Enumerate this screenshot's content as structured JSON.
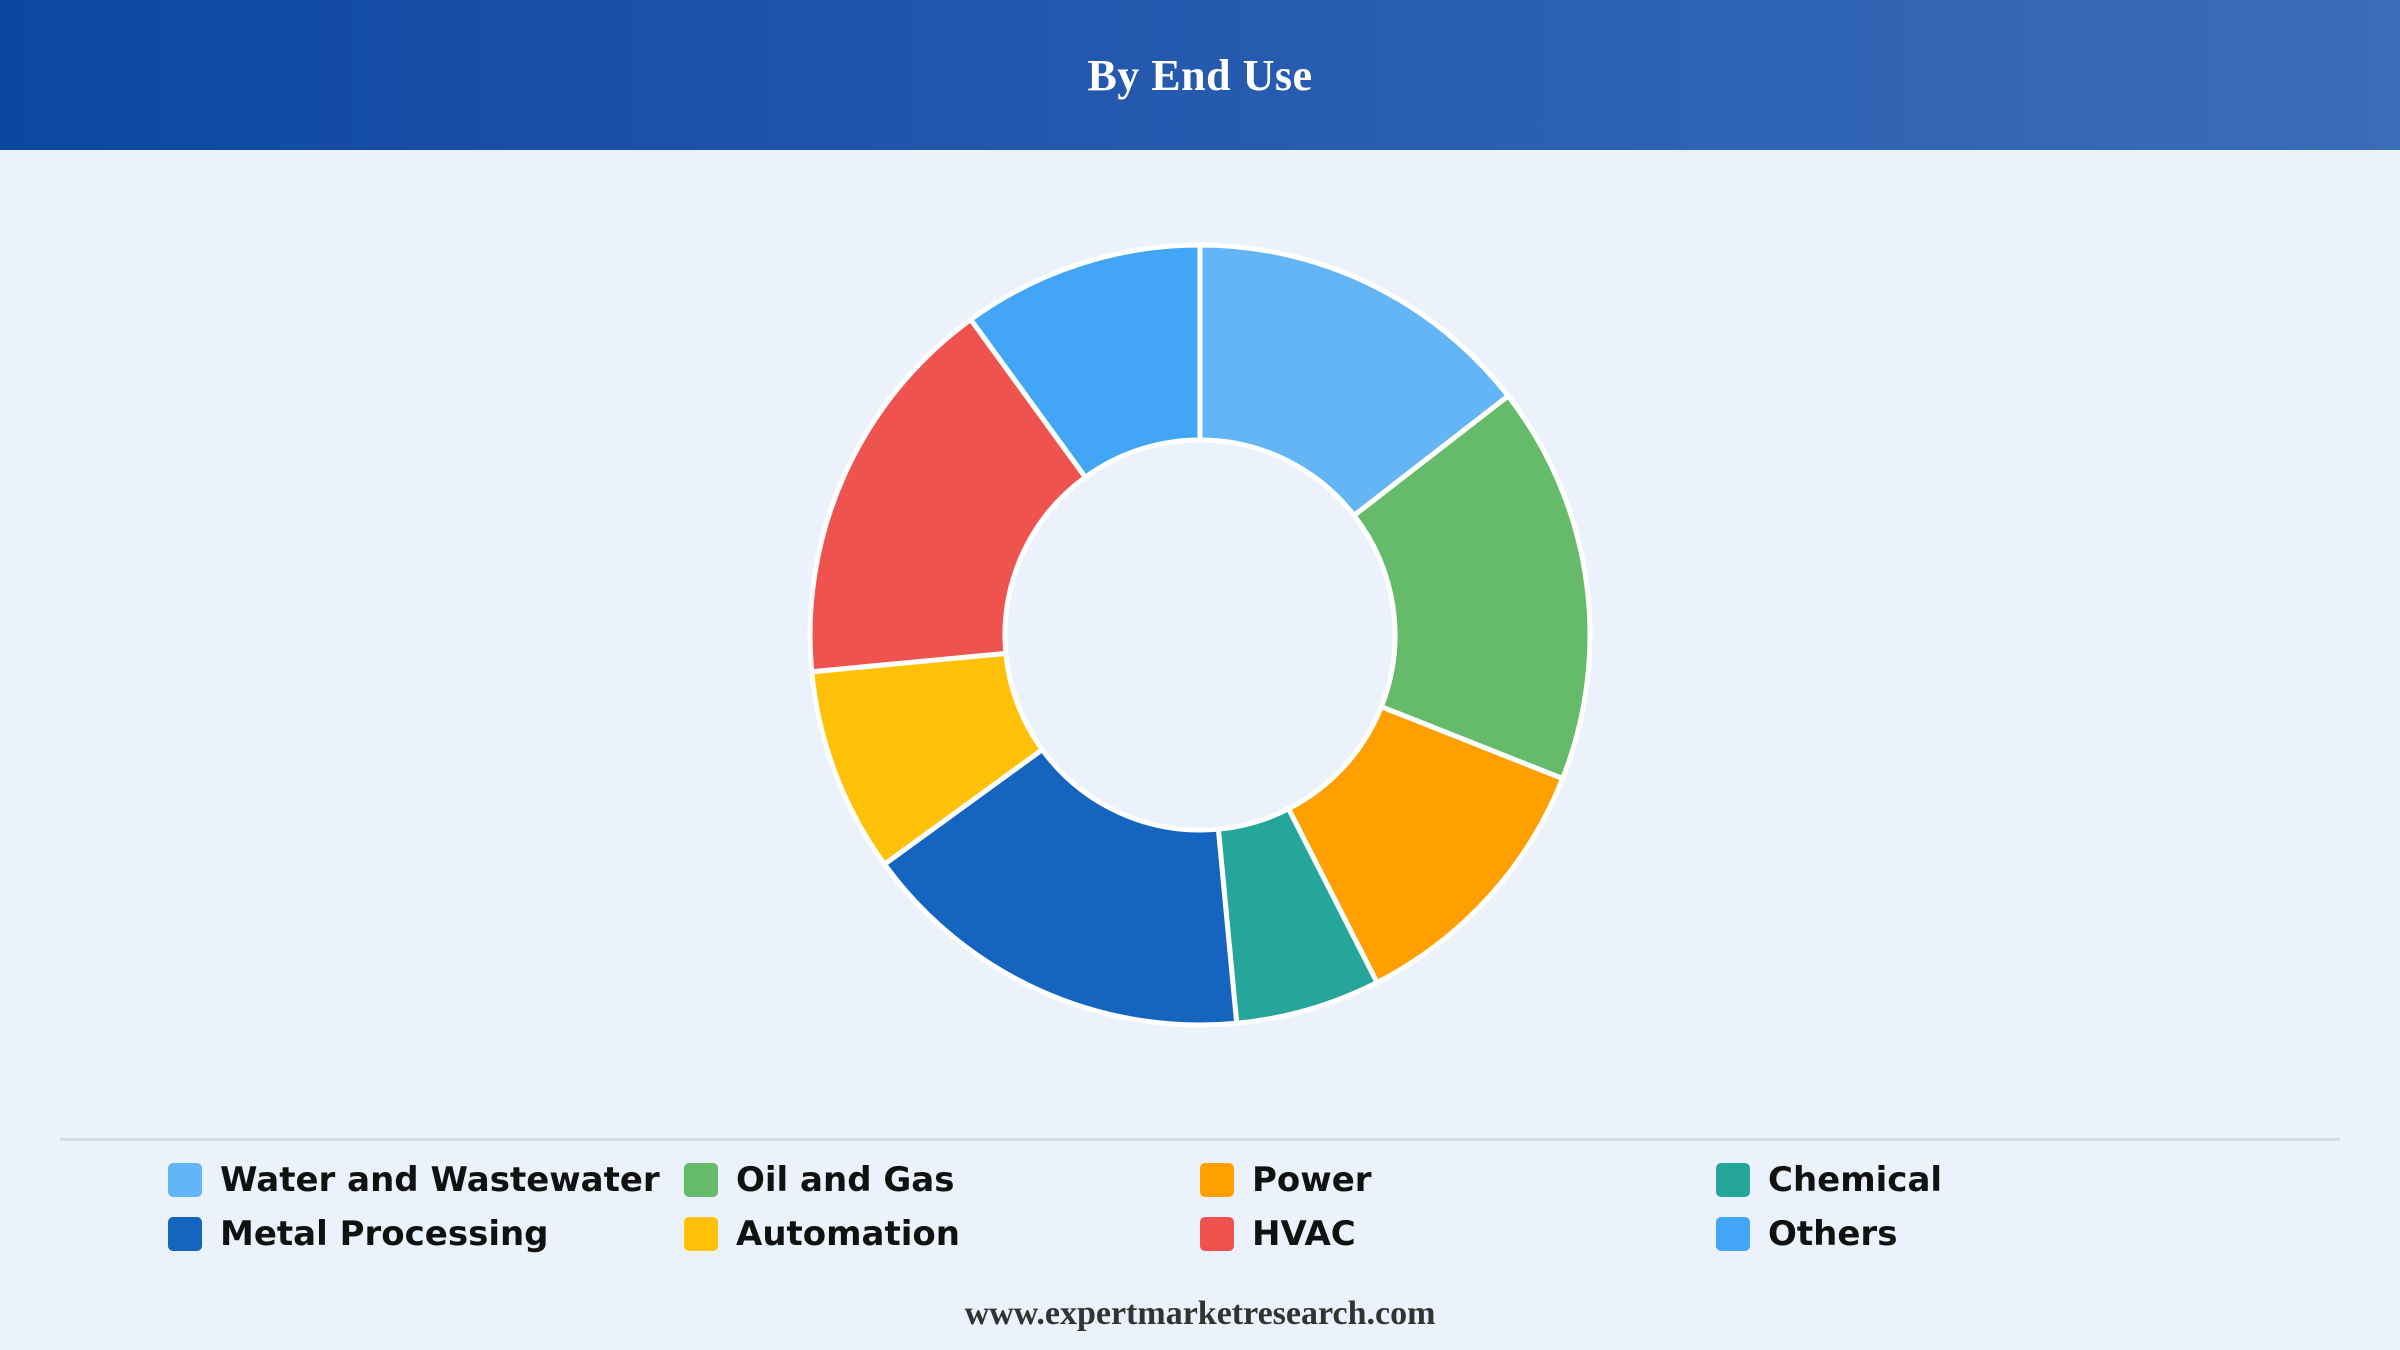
{
  "header": {
    "title": "By End Use"
  },
  "chart_data": {
    "type": "pie",
    "title": "By End Use",
    "donut": true,
    "legend_position": "bottom",
    "categories": [
      "Water and Wastewater",
      "Oil and Gas",
      "Power",
      "Chemical",
      "Metal Processing",
      "Automation",
      "HVAC",
      "Others"
    ],
    "values": [
      14.5,
      16.5,
      11.5,
      6.0,
      16.5,
      8.5,
      16.5,
      10.0
    ],
    "colors": [
      "#64B5F6",
      "#66BB6A",
      "#FFA000",
      "#26A69A",
      "#1565C0",
      "#FFC107",
      "#EF5350",
      "#42A5F5"
    ],
    "slice_order_clockwise_from_top": [
      "Water and Wastewater",
      "Oil and Gas",
      "Power",
      "Chemical",
      "Metal Processing",
      "Automation",
      "HVAC",
      "Others"
    ]
  },
  "legend": {
    "items": [
      {
        "label": "Water and Wastewater",
        "color": "#64B5F6"
      },
      {
        "label": "Oil and Gas",
        "color": "#66BB6A"
      },
      {
        "label": "Power",
        "color": "#FFA000"
      },
      {
        "label": "Chemical",
        "color": "#26A69A"
      },
      {
        "label": "Metal Processing",
        "color": "#1565C0"
      },
      {
        "label": "Automation",
        "color": "#FFC107"
      },
      {
        "label": "HVAC",
        "color": "#EF5350"
      },
      {
        "label": "Others",
        "color": "#42A5F5"
      }
    ]
  },
  "footer": {
    "source": "www.expertmarketresearch.com"
  }
}
